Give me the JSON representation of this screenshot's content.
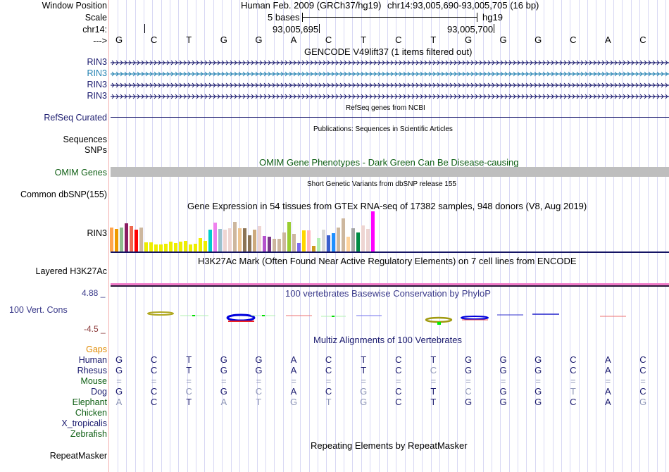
{
  "header": {
    "window_position_label": "Window Position",
    "scale_label": "Scale",
    "chrom_label": "chr14:",
    "strand_label": "--->",
    "assembly_title": "Human Feb. 2009 (GRCh37/hg19)",
    "position": "chr14:93,005,690-93,005,705 (16 bp)",
    "scale_text": "5 bases",
    "scale_db": "hg19",
    "coord_left": "93,005,695",
    "coord_right": "93,005,700"
  },
  "sequence": [
    "G",
    "C",
    "T",
    "G",
    "G",
    "A",
    "C",
    "T",
    "C",
    "T",
    "G",
    "G",
    "G",
    "C",
    "A",
    "C"
  ],
  "gencode": {
    "title": "GENCODE V49lift37 (1 items filtered out)",
    "tracks": [
      {
        "label": "RIN3",
        "color": "#1a1a6e"
      },
      {
        "label": "RIN3",
        "color": "#1f7fb0"
      },
      {
        "label": "RIN3",
        "color": "#1a1a6e"
      },
      {
        "label": "RIN3",
        "color": "#1a1a6e"
      }
    ]
  },
  "refseq": {
    "title": "RefSeq genes from NCBI",
    "label": "RefSeq Curated"
  },
  "publications": {
    "title": "Publications: Sequences in Scientific Articles",
    "label1": "Sequences",
    "label2": "SNPs"
  },
  "omim": {
    "title": "OMIM Gene Phenotypes - Dark Green Can Be Disease-causing",
    "label": "OMIM Genes"
  },
  "dbsnp": {
    "title": "Short Genetic Variants from dbSNP release 155",
    "label": "Common dbSNP(155)"
  },
  "gtex": {
    "title": "Gene Expression in 54 tissues from GTEx RNA-seq of 17382 samples, 948 donors (V8, Aug 2019)",
    "label": "RIN3",
    "bars": [
      {
        "v": 0.6,
        "c": "#ffa54f"
      },
      {
        "v": 0.57,
        "c": "#ee9a00"
      },
      {
        "v": 0.59,
        "c": "#8fbc8f"
      },
      {
        "v": 0.7,
        "c": "#8b1c62"
      },
      {
        "v": 0.63,
        "c": "#ee6a50"
      },
      {
        "v": 0.55,
        "c": "#ff0000"
      },
      {
        "v": 0.59,
        "c": "#cdb79e"
      },
      {
        "v": 0.22,
        "c": "#eeee00"
      },
      {
        "v": 0.22,
        "c": "#eeee00"
      },
      {
        "v": 0.18,
        "c": "#eeee00"
      },
      {
        "v": 0.18,
        "c": "#eeee00"
      },
      {
        "v": 0.2,
        "c": "#eeee00"
      },
      {
        "v": 0.24,
        "c": "#eeee00"
      },
      {
        "v": 0.21,
        "c": "#eeee00"
      },
      {
        "v": 0.24,
        "c": "#eeee00"
      },
      {
        "v": 0.27,
        "c": "#eeee00"
      },
      {
        "v": 0.18,
        "c": "#eeee00"
      },
      {
        "v": 0.19,
        "c": "#eeee00"
      },
      {
        "v": 0.34,
        "c": "#eeee00"
      },
      {
        "v": 0.27,
        "c": "#eeee00"
      },
      {
        "v": 0.55,
        "c": "#00cdcd"
      },
      {
        "v": 0.72,
        "c": "#ee82ee"
      },
      {
        "v": 0.57,
        "c": "#9ac0cd"
      },
      {
        "v": 0.55,
        "c": "#eed5d2"
      },
      {
        "v": 0.58,
        "c": "#eed5d2"
      },
      {
        "v": 0.73,
        "c": "#cdb79e"
      },
      {
        "v": 0.58,
        "c": "#eec591"
      },
      {
        "v": 0.58,
        "c": "#8b7355"
      },
      {
        "v": 0.41,
        "c": "#8b7355"
      },
      {
        "v": 0.55,
        "c": "#cdaa7d"
      },
      {
        "v": 0.63,
        "c": "#eed5d2"
      },
      {
        "v": 0.39,
        "c": "#b452cd"
      },
      {
        "v": 0.36,
        "c": "#7a378b"
      },
      {
        "v": 0.32,
        "c": "#cdb79e"
      },
      {
        "v": 0.32,
        "c": "#cdb79e"
      },
      {
        "v": 0.47,
        "c": "#cdb79e"
      },
      {
        "v": 0.73,
        "c": "#9acd32"
      },
      {
        "v": 0.43,
        "c": "#cdb79e"
      },
      {
        "v": 0.21,
        "c": "#7b68ee"
      },
      {
        "v": 0.53,
        "c": "#ffd700"
      },
      {
        "v": 0.53,
        "c": "#ffb6c1"
      },
      {
        "v": 0.14,
        "c": "#cd9b1d"
      },
      {
        "v": 0.33,
        "c": "#b4eeb4"
      },
      {
        "v": 0.55,
        "c": "#d9d9d9"
      },
      {
        "v": 0.4,
        "c": "#3a5fcd"
      },
      {
        "v": 0.46,
        "c": "#1e90ff"
      },
      {
        "v": 0.59,
        "c": "#cdb79e"
      },
      {
        "v": 0.83,
        "c": "#cdb79e"
      },
      {
        "v": 0.37,
        "c": "#ffd39b"
      },
      {
        "v": 0.58,
        "c": "#a6a6a6"
      },
      {
        "v": 0.48,
        "c": "#008b45"
      },
      {
        "v": 0.65,
        "c": "#eed5d2"
      },
      {
        "v": 0.56,
        "c": "#eed5d2"
      },
      {
        "v": 1.0,
        "c": "#ff00ff"
      }
    ]
  },
  "h3k27ac": {
    "title": "H3K27Ac Mark (Often Found Near Active Regulatory Elements) on 7 cell lines from ENCODE",
    "label": "Layered H3K27Ac"
  },
  "conservation": {
    "title": "100 vertebrates Basewise Conservation by PhyloP",
    "label": "100 Vert. Cons",
    "ymax": "4.88 _",
    "ymin": "-4.5 _"
  },
  "multiz": {
    "title": "Multiz Alignments of 100 Vertebrates",
    "gaps_label": "Gaps",
    "species": [
      {
        "name": "Human",
        "cls": "navy",
        "bases": [
          "G",
          "C",
          "T",
          "G",
          "G",
          "A",
          "C",
          "T",
          "C",
          "T",
          "G",
          "G",
          "G",
          "C",
          "A",
          "C"
        ],
        "faint": []
      },
      {
        "name": "Rhesus",
        "cls": "navy",
        "bases": [
          "G",
          "C",
          "T",
          "G",
          "G",
          "A",
          "C",
          "T",
          "C",
          "C",
          "G",
          "G",
          "G",
          "C",
          "A",
          "C"
        ],
        "faint": [
          9
        ]
      },
      {
        "name": "Mouse",
        "cls": "green",
        "bases": [
          "=",
          "=",
          "=",
          "=",
          "=",
          "=",
          "=",
          "=",
          "=",
          "=",
          "=",
          "=",
          "=",
          "=",
          "=",
          "="
        ],
        "faint": [
          0,
          1,
          2,
          3,
          4,
          5,
          6,
          7,
          8,
          9,
          10,
          11,
          12,
          13,
          14,
          15
        ]
      },
      {
        "name": "Dog",
        "cls": "navy",
        "bases": [
          "G",
          "C",
          "C",
          "G",
          "C",
          "A",
          "C",
          "G",
          "C",
          "T",
          "C",
          "G",
          "G",
          "T",
          "A",
          "C"
        ],
        "faint": [
          2,
          4,
          7,
          10,
          13
        ]
      },
      {
        "name": "Elephant",
        "cls": "green",
        "bases": [
          "A",
          "C",
          "T",
          "A",
          "T",
          "G",
          "T",
          "G",
          "C",
          "T",
          "G",
          "G",
          "G",
          "C",
          "A",
          "G"
        ],
        "faint": [
          0,
          3,
          4,
          5,
          6,
          7,
          15
        ]
      },
      {
        "name": "Chicken",
        "cls": "green",
        "bases": [],
        "faint": []
      },
      {
        "name": "X_tropicalis",
        "cls": "navy",
        "bases": [],
        "faint": []
      },
      {
        "name": "Zebrafish",
        "cls": "green",
        "bases": [],
        "faint": []
      }
    ]
  },
  "repeatmasker": {
    "title": "Repeating Elements by RepeatMasker",
    "label": "RepeatMasker"
  }
}
